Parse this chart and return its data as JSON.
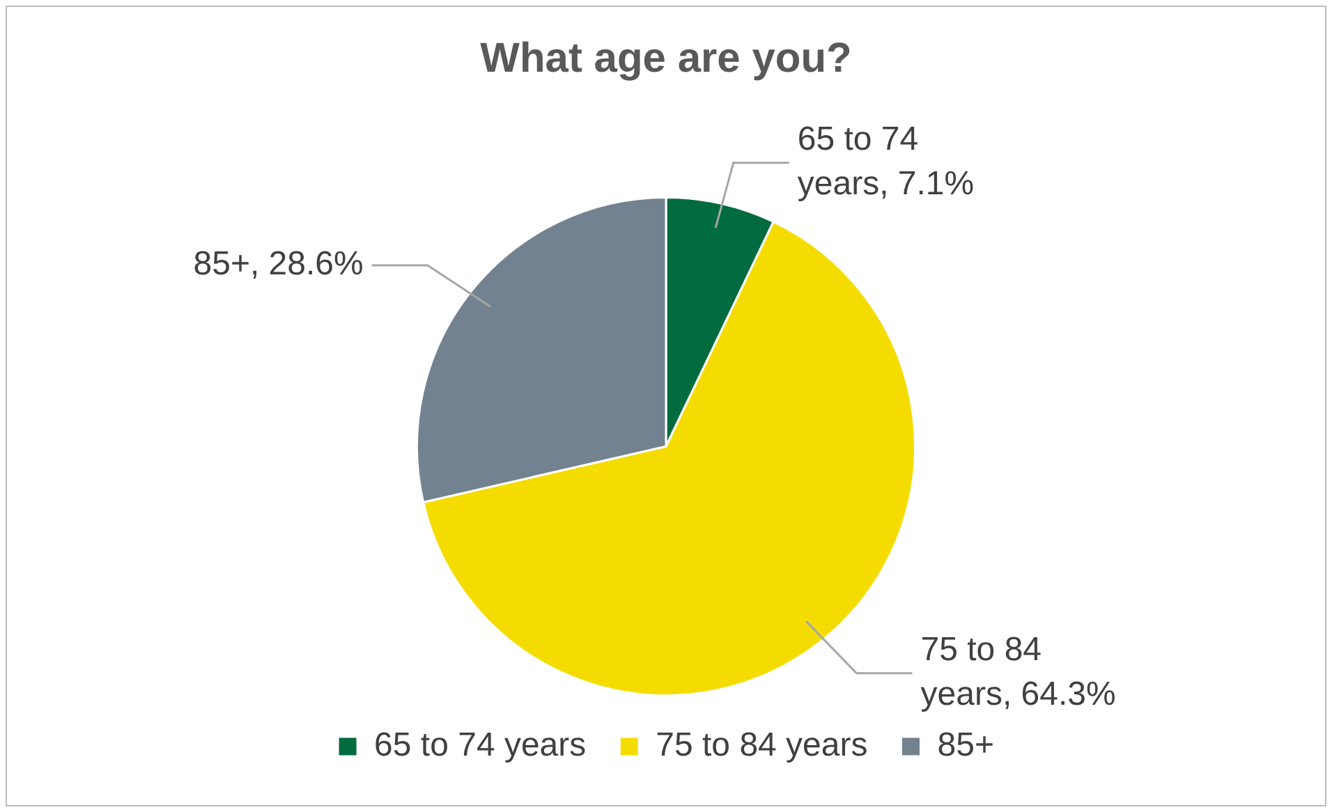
{
  "chart_data": {
    "type": "pie",
    "title": "What age are you?",
    "categories": [
      "65 to 74 years",
      "75 to 84 years",
      "85+"
    ],
    "values": [
      7.1,
      64.3,
      28.6
    ],
    "colors": [
      "#006b3f",
      "#f5dc00",
      "#738290"
    ],
    "value_labels": [
      "65 to 74 years, 7.1%",
      "75 to 84 years, 64.3%",
      "85+, 28.6%"
    ],
    "legend": "bottom"
  }
}
